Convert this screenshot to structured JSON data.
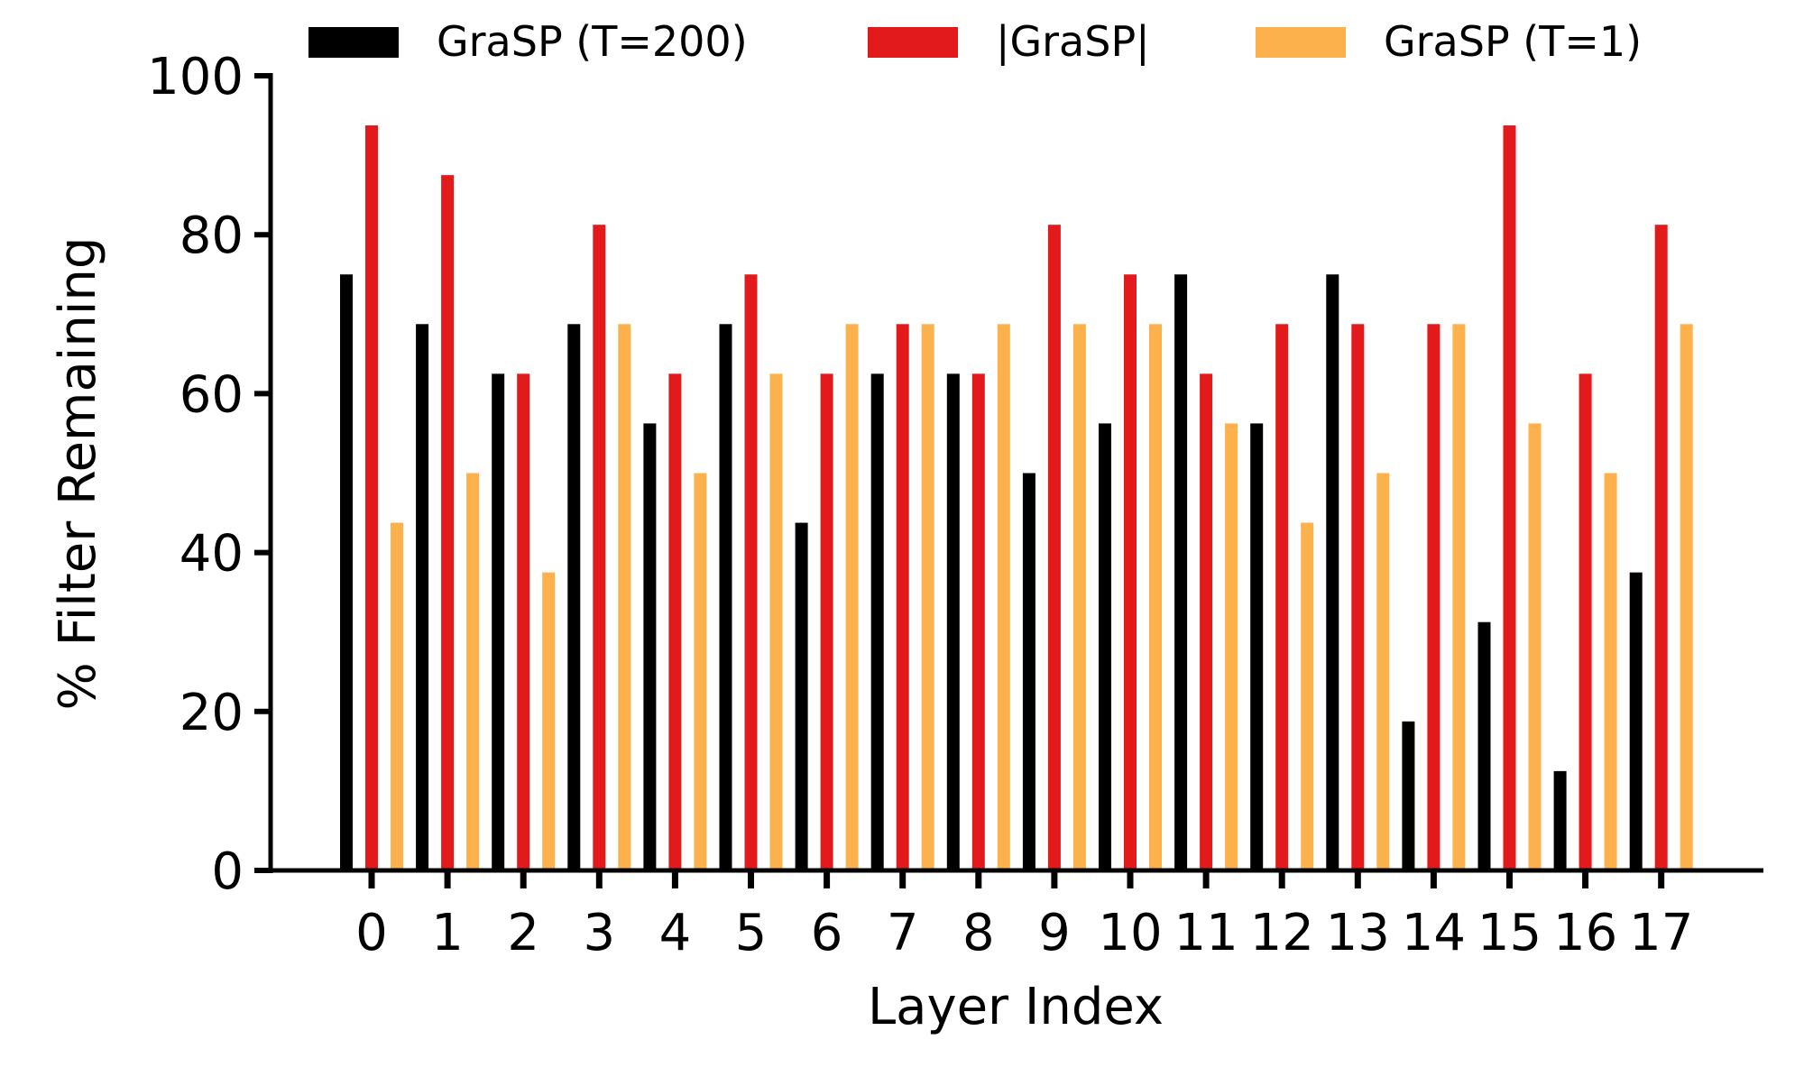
{
  "chart_data": {
    "type": "bar",
    "title": "",
    "xlabel": "Layer Index",
    "ylabel": "% Filter Remaining",
    "ylim": [
      0,
      100
    ],
    "yticks": [
      0,
      20,
      40,
      60,
      80,
      100
    ],
    "grid": false,
    "legend_position": "top",
    "categories": [
      "0",
      "1",
      "2",
      "3",
      "4",
      "5",
      "6",
      "7",
      "8",
      "9",
      "10",
      "11",
      "12",
      "13",
      "14",
      "15",
      "16",
      "17"
    ],
    "series": [
      {
        "name": "GraSP (T=200)",
        "color": "#000000",
        "values": [
          75,
          68.75,
          62.5,
          68.75,
          56.25,
          68.75,
          43.75,
          62.5,
          62.5,
          50,
          56.25,
          75,
          56.25,
          75,
          18.75,
          31.25,
          12.5,
          37.5
        ]
      },
      {
        "name": "|GraSP|",
        "color": "#e31a1c",
        "values": [
          93.75,
          87.5,
          62.5,
          81.25,
          62.5,
          75,
          62.5,
          68.75,
          62.5,
          81.25,
          75,
          62.5,
          68.75,
          68.75,
          68.75,
          93.75,
          62.5,
          81.25
        ]
      },
      {
        "name": "GraSP (T=1)",
        "color": "#fdb14d",
        "values": [
          43.75,
          50,
          37.5,
          68.75,
          50,
          62.5,
          68.75,
          68.75,
          68.75,
          68.75,
          68.75,
          56.25,
          43.75,
          50,
          68.75,
          56.25,
          50,
          68.75
        ]
      }
    ]
  }
}
